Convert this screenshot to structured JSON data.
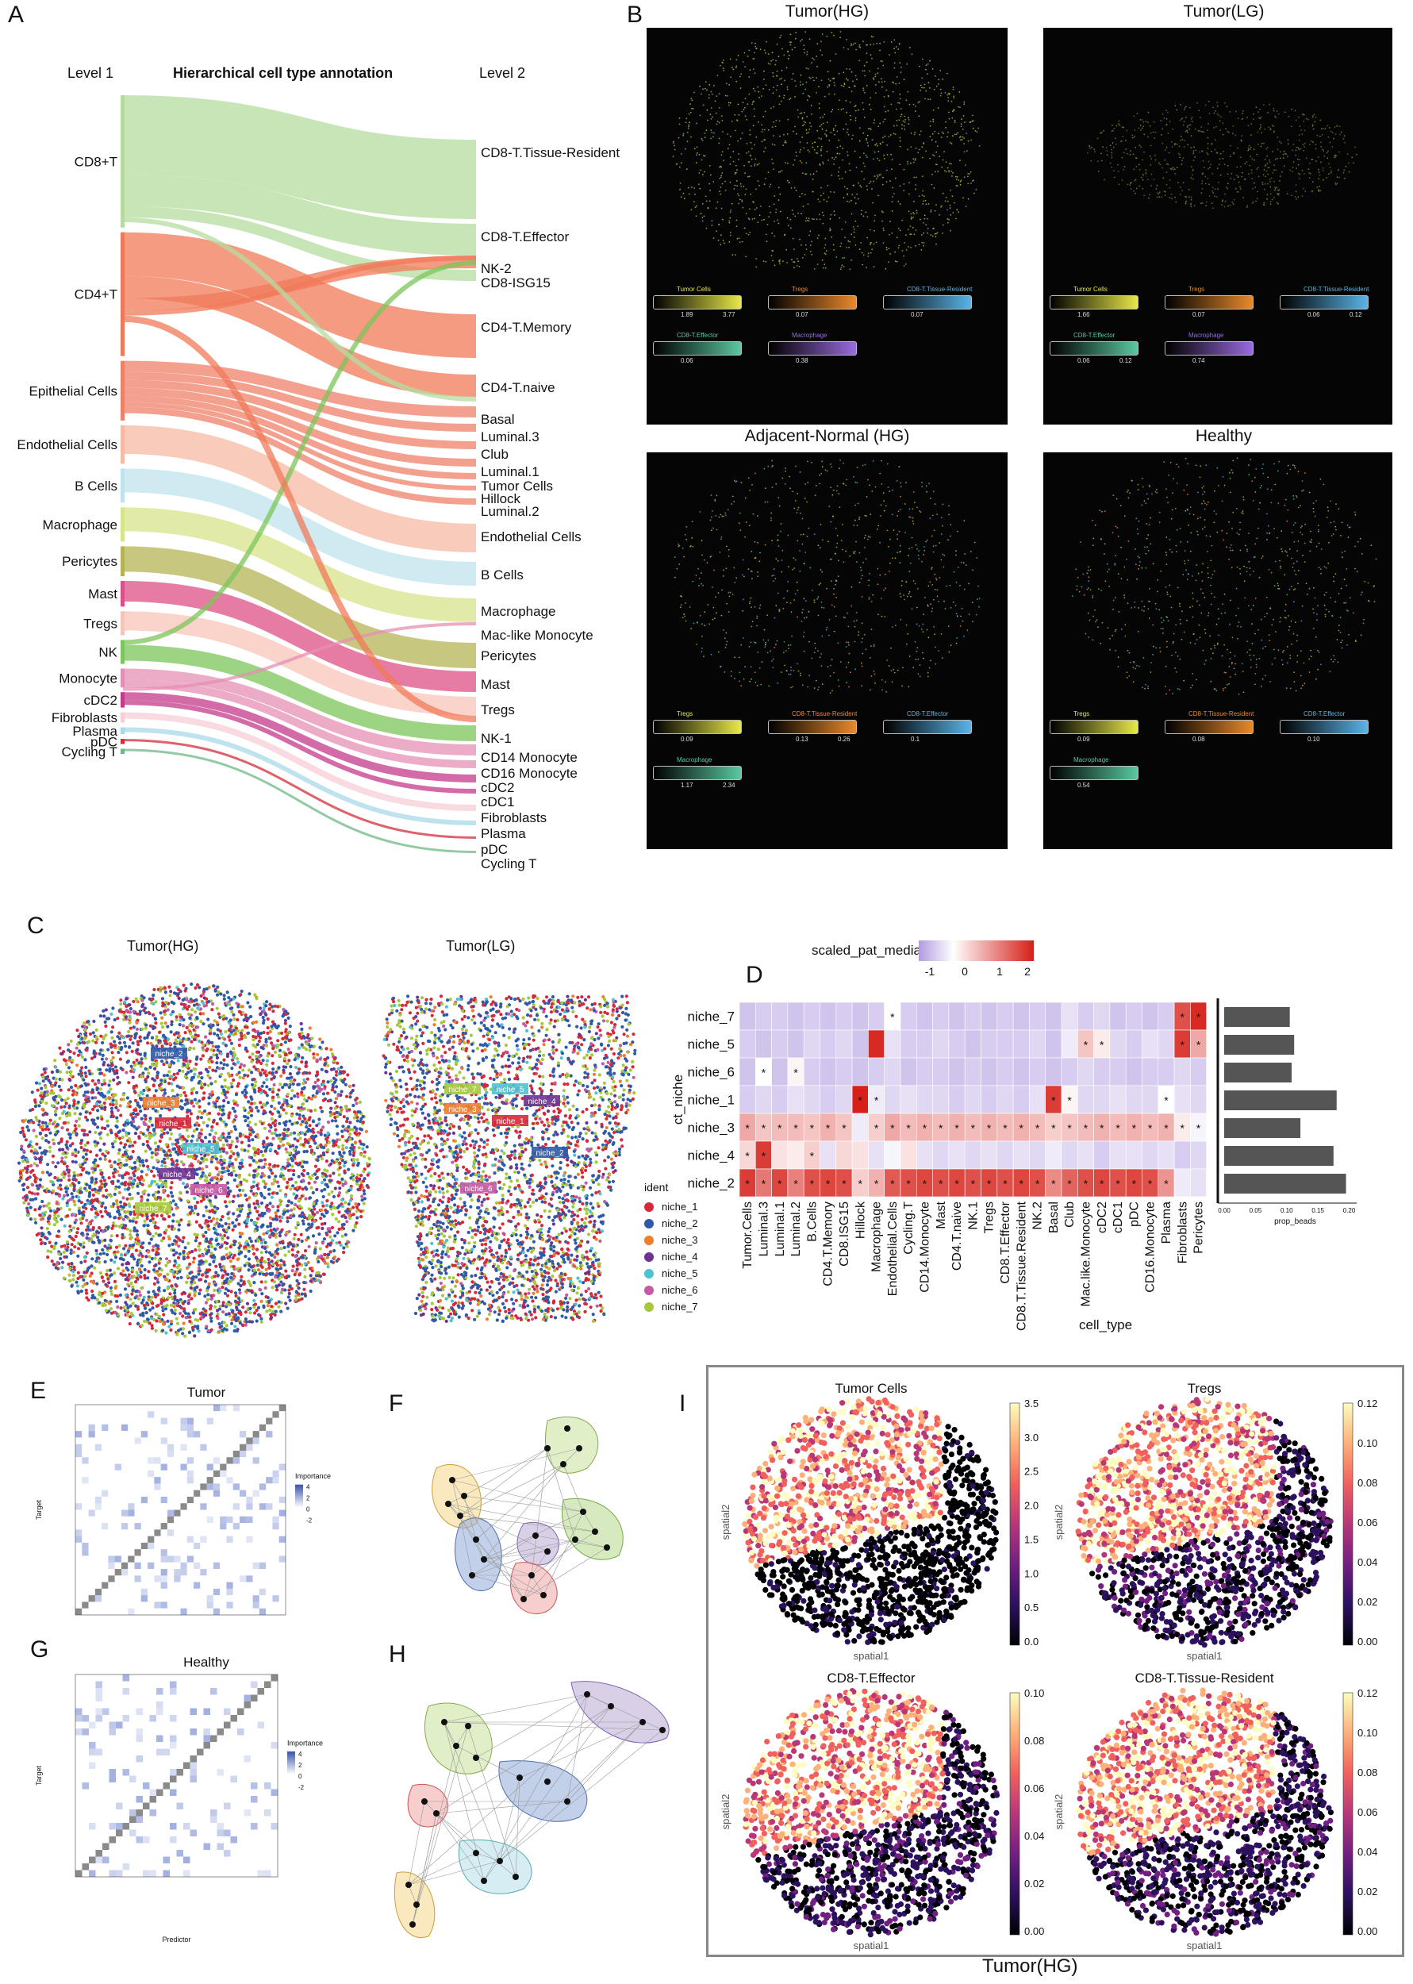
{
  "panels": {
    "A": {
      "letter": "A",
      "level1_label": "Level 1",
      "title": "Hierarchical cell type annotation",
      "level2_label": "Level 2",
      "level1": [
        {
          "name": "CD8+T",
          "color": "#b5dca0",
          "share": 0.155
        },
        {
          "name": "CD4+T",
          "color": "#f07a58",
          "share": 0.145
        },
        {
          "name": "Epithelial Cells",
          "color": "#f0806a",
          "share": 0.07
        },
        {
          "name": "Endothelial Cells",
          "color": "#f7b9a4",
          "share": 0.045
        },
        {
          "name": "B Cells",
          "color": "#bfe3ec",
          "share": 0.04
        },
        {
          "name": "Macrophage",
          "color": "#d7e48a",
          "share": 0.04
        },
        {
          "name": "Pericytes",
          "color": "#b5b455",
          "share": 0.035
        },
        {
          "name": "Mast",
          "color": "#dd4f86",
          "share": 0.03
        },
        {
          "name": "Tregs",
          "color": "#f8c4b8",
          "share": 0.028
        },
        {
          "name": "NK",
          "color": "#7cc65a",
          "share": 0.028
        },
        {
          "name": "Monocyte",
          "color": "#e58fb4",
          "share": 0.022
        },
        {
          "name": "cDC2",
          "color": "#c63a8c",
          "share": 0.018
        },
        {
          "name": "Fibroblasts",
          "color": "#f7cdd6",
          "share": 0.012
        },
        {
          "name": "Plasma",
          "color": "#a8d9e8",
          "share": 0.008
        },
        {
          "name": "pDC",
          "color": "#d22d3a",
          "share": 0.006
        },
        {
          "name": "Cycling T",
          "color": "#6db886",
          "share": 0.006
        }
      ],
      "level2": [
        "CD8-T.Tissue-Resident",
        "CD8-T.Effector",
        "NK-2",
        "CD8-ISG15",
        "CD4-T.Memory",
        "CD4-T.naive",
        "Basal",
        "Luminal.3",
        "Club",
        "Luminal.1",
        "Tumor Cells",
        "Hillock",
        "Luminal.2",
        "Endothelial Cells",
        "B Cells",
        "Macrophage",
        "Mac-like Monocyte",
        "Pericytes",
        "Mast",
        "Tregs",
        "NK-1",
        "CD14 Monocyte",
        "CD16 Monocyte",
        "cDC2",
        "cDC1",
        "Fibroblasts",
        "Plasma",
        "pDC",
        "Cycling T"
      ]
    },
    "B": {
      "letter": "B",
      "maps": [
        {
          "title": "Tumor(HG)",
          "palette": "yellow",
          "legends": [
            [
              "Tumor Cells",
              "1.89",
              "3.77"
            ],
            [
              "Tregs",
              "0.07",
              ""
            ],
            [
              "CD8-T.Tissue-Resident",
              "0.07",
              ""
            ],
            [
              "CD8-T.Effector",
              "0.06",
              ""
            ],
            [
              "Macrophage",
              "0.38",
              ""
            ]
          ]
        },
        {
          "title": "Tumor(LG)",
          "palette": "yellow-dim",
          "legends": [
            [
              "Tumor Cells",
              "1.66",
              ""
            ],
            [
              "Tregs",
              "0.07",
              ""
            ],
            [
              "CD8-T.Tissue-Resident",
              "0.06",
              "0.12"
            ],
            [
              "CD8-T.Effector",
              "0.06",
              "0.12"
            ],
            [
              "Macrophage",
              "0.74",
              ""
            ]
          ]
        },
        {
          "title": "Adjacent-Normal (HG)",
          "palette": "mixed",
          "legends": [
            [
              "Tregs",
              "0.09",
              ""
            ],
            [
              "CD8-T.Tissue-Resident",
              "0.13",
              "0.26"
            ],
            [
              "CD8-T.Effector",
              "0.1",
              ""
            ],
            [
              "Macrophage",
              "1.17",
              "2.34"
            ]
          ]
        },
        {
          "title": "Healthy",
          "palette": "mixed",
          "legends": [
            [
              "Tregs",
              "0.09",
              ""
            ],
            [
              "CD8-T.Tissue-Resident",
              "0.08",
              ""
            ],
            [
              "CD8-T.Effector",
              "0.10",
              ""
            ],
            [
              "Macrophage",
              "0.54",
              ""
            ]
          ]
        }
      ]
    },
    "C": {
      "letter": "C",
      "left_title": "Tumor(HG)",
      "right_title": "Tumor(LG)",
      "legend_title": "ident",
      "niches": [
        {
          "name": "niche_1",
          "color": "#d62839"
        },
        {
          "name": "niche_2",
          "color": "#2e5aaa"
        },
        {
          "name": "niche_3",
          "color": "#ee7d2c"
        },
        {
          "name": "niche_4",
          "color": "#6d3391"
        },
        {
          "name": "niche_5",
          "color": "#4fc1cf"
        },
        {
          "name": "niche_6",
          "color": "#c45aa3"
        },
        {
          "name": "niche_7",
          "color": "#a5c93a"
        }
      ]
    },
    "D": {
      "letter": "D",
      "legend_title": "scaled_pat_median",
      "legend_ticks": [
        "-1",
        "0",
        "1",
        "2"
      ],
      "ylabel": "ct_niche",
      "xlabel": "cell_type",
      "bar_xlabel": "prop_beads",
      "bar_ticks": [
        "0.00",
        "0.05",
        "0.10",
        "0.15",
        "0.20"
      ]
    },
    "E": {
      "letter": "E",
      "title": "Tumor",
      "ylabel": "Target",
      "legend_title": "Importance",
      "legend_ticks": [
        "4",
        "2",
        "0",
        "-2"
      ]
    },
    "F": {
      "letter": "F"
    },
    "G": {
      "letter": "G",
      "title": "Healthy",
      "ylabel": "Target",
      "xlabel": "Predictor",
      "legend_title": "Importance",
      "legend_ticks": [
        "4",
        "2",
        "0",
        "-2"
      ]
    },
    "H": {
      "letter": "H"
    },
    "I": {
      "letter": "I",
      "caption": "Tumor(HG)",
      "xlabel": "spatial1",
      "ylabel": "spatial2",
      "maps": [
        {
          "title": "Tumor Cells",
          "ticks": [
            "3.5",
            "3.0",
            "2.5",
            "2.0",
            "1.5",
            "1.0",
            "0.5",
            "0.0"
          ]
        },
        {
          "title": "Tregs",
          "ticks": [
            "0.12",
            "0.10",
            "0.08",
            "0.06",
            "0.04",
            "0.02",
            "0.00"
          ]
        },
        {
          "title": "CD8-T.Effector",
          "ticks": [
            "0.10",
            "0.08",
            "0.06",
            "0.04",
            "0.02",
            "0.00"
          ]
        },
        {
          "title": "CD8-T.Tissue-Resident",
          "ticks": [
            "0.12",
            "0.10",
            "0.08",
            "0.06",
            "0.04",
            "0.02",
            "0.00"
          ]
        }
      ]
    }
  },
  "chart_data": [
    {
      "type": "heatmap",
      "title": "",
      "xlabel": "cell_type",
      "ylabel": "ct_niche",
      "colorbar_label": "scaled_pat_median",
      "colorbar_range": [
        -1,
        2.3
      ],
      "rows": [
        "niche_7",
        "niche_5",
        "niche_6",
        "niche_1",
        "niche_3",
        "niche_4",
        "niche_2"
      ],
      "columns": [
        "Tumor.Cells",
        "Luminal.3",
        "Luminal.1",
        "Luminal.2",
        "B.Cells",
        "CD4.T.Memory",
        "CD8.ISG15",
        "Hillock",
        "Macrophage",
        "Endothelial.Cells",
        "Cycling.T",
        "CD14.Monocyte",
        "Mast",
        "CD4.T.naive",
        "NK.1",
        "Tregs",
        "CD8.T.Effector",
        "CD8.T.Tissue.Resident",
        "NK.2",
        "Basal",
        "Club",
        "Mac.like.Monocyte",
        "cDC2",
        "cDC1",
        "pDC",
        "CD16.Monocyte",
        "Plasma",
        "Fibroblasts",
        "Pericytes"
      ],
      "values": [
        [
          -0.6,
          -0.5,
          -0.5,
          -0.6,
          -0.5,
          -0.6,
          -0.5,
          -0.6,
          -0.5,
          0.0,
          -0.5,
          -0.6,
          -0.5,
          -0.6,
          -0.5,
          -0.6,
          -0.5,
          -0.6,
          -0.5,
          -0.6,
          -0.3,
          -0.5,
          -0.4,
          -0.6,
          -0.5,
          -0.6,
          -0.5,
          1.8,
          2.2
        ],
        [
          -0.5,
          -0.6,
          -0.5,
          -0.6,
          -0.4,
          -0.5,
          -0.4,
          -0.6,
          2.2,
          -0.3,
          -0.5,
          -0.5,
          -0.4,
          -0.5,
          -0.6,
          -0.5,
          -0.5,
          -0.5,
          -0.4,
          -0.6,
          -0.2,
          0.6,
          0.2,
          -0.4,
          -0.5,
          -0.3,
          -0.4,
          2.0,
          0.9
        ],
        [
          -0.6,
          0.0,
          -0.6,
          0.1,
          -0.5,
          -0.6,
          -0.5,
          -0.6,
          -0.5,
          -0.4,
          -0.6,
          -0.5,
          -0.5,
          -0.6,
          -0.5,
          -0.6,
          -0.5,
          -0.6,
          -0.5,
          -0.6,
          -0.5,
          -0.4,
          -0.5,
          -0.5,
          -0.6,
          -0.5,
          -0.5,
          -0.4,
          -0.5
        ],
        [
          -0.5,
          -0.4,
          -0.5,
          -0.3,
          -0.4,
          -0.5,
          -0.4,
          2.3,
          -0.2,
          -0.4,
          -0.3,
          -0.4,
          -0.4,
          -0.5,
          -0.4,
          -0.5,
          -0.4,
          -0.5,
          -0.3,
          2.0,
          0.1,
          -0.4,
          -0.4,
          -0.3,
          -0.4,
          -0.4,
          0.0,
          -0.3,
          -0.4
        ],
        [
          0.9,
          0.6,
          0.7,
          0.7,
          0.6,
          0.8,
          0.6,
          -0.2,
          0.5,
          0.9,
          0.7,
          0.8,
          0.7,
          0.8,
          0.7,
          0.8,
          0.7,
          0.8,
          0.7,
          0.5,
          0.6,
          0.7,
          0.8,
          0.7,
          0.8,
          0.7,
          0.8,
          0.2,
          -0.1
        ],
        [
          0.4,
          2.0,
          0.3,
          0.2,
          0.5,
          -0.3,
          0.4,
          0.3,
          -0.3,
          -0.1,
          0.3,
          -0.3,
          -0.4,
          -0.3,
          -0.4,
          -0.3,
          -0.4,
          -0.3,
          -0.4,
          -0.2,
          -0.4,
          -0.3,
          -0.5,
          -0.3,
          -0.3,
          -0.4,
          -0.3,
          -0.5,
          -0.4
        ],
        [
          2.0,
          1.4,
          1.9,
          1.3,
          1.8,
          1.9,
          1.8,
          0.5,
          0.8,
          1.7,
          1.8,
          1.9,
          1.8,
          1.9,
          1.8,
          1.9,
          1.8,
          1.9,
          1.8,
          1.2,
          1.6,
          1.8,
          1.9,
          1.8,
          1.9,
          1.8,
          1.1,
          -0.2,
          -0.3
        ]
      ],
      "stars": [
        [
          0,
          0,
          0,
          0,
          0,
          0,
          0,
          0,
          0,
          1,
          0,
          0,
          0,
          0,
          0,
          0,
          0,
          0,
          0,
          0,
          0,
          0,
          0,
          0,
          0,
          0,
          0,
          1,
          1
        ],
        [
          0,
          0,
          0,
          0,
          0,
          0,
          0,
          0,
          0,
          0,
          0,
          0,
          0,
          0,
          0,
          0,
          0,
          0,
          0,
          0,
          0,
          1,
          1,
          0,
          0,
          0,
          0,
          1,
          1
        ],
        [
          0,
          1,
          0,
          1,
          0,
          0,
          0,
          0,
          0,
          0,
          0,
          0,
          0,
          0,
          0,
          0,
          0,
          0,
          0,
          0,
          0,
          0,
          0,
          0,
          0,
          0,
          0,
          0,
          0
        ],
        [
          0,
          0,
          0,
          0,
          0,
          0,
          0,
          1,
          1,
          0,
          0,
          0,
          0,
          0,
          0,
          0,
          0,
          0,
          0,
          1,
          1,
          0,
          0,
          0,
          0,
          0,
          1,
          0,
          0
        ],
        [
          1,
          1,
          1,
          1,
          1,
          1,
          1,
          0,
          1,
          1,
          1,
          1,
          1,
          1,
          1,
          1,
          1,
          1,
          1,
          1,
          1,
          1,
          1,
          1,
          1,
          1,
          1,
          1,
          1
        ],
        [
          1,
          1,
          0,
          0,
          1,
          0,
          0,
          0,
          0,
          0,
          0,
          0,
          0,
          0,
          0,
          0,
          0,
          0,
          0,
          0,
          0,
          0,
          0,
          0,
          0,
          0,
          0,
          0,
          0
        ],
        [
          1,
          1,
          1,
          1,
          1,
          1,
          1,
          1,
          1,
          1,
          1,
          1,
          1,
          1,
          1,
          1,
          1,
          1,
          1,
          1,
          1,
          1,
          1,
          1,
          1,
          1,
          1,
          0,
          0
        ]
      ]
    },
    {
      "type": "bar",
      "orientation": "horizontal",
      "xlabel": "prop_beads",
      "categories": [
        "niche_7",
        "niche_5",
        "niche_6",
        "niche_1",
        "niche_3",
        "niche_4",
        "niche_2"
      ],
      "values": [
        0.105,
        0.112,
        0.108,
        0.18,
        0.122,
        0.175,
        0.195
      ],
      "xlim": [
        0,
        0.2
      ]
    }
  ]
}
